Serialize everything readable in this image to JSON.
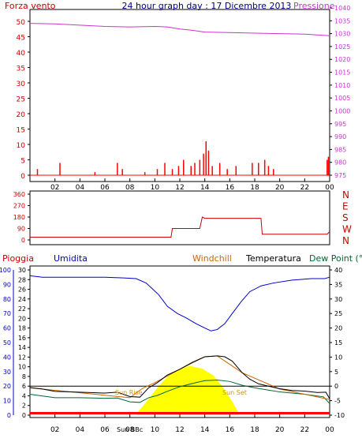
{
  "header": {
    "left_label": "Forza vento",
    "center_label": "24 hour graph day : 17 Dicembre 2013",
    "right_label": "Pressione"
  },
  "panel3_labels": {
    "rain": "Pioggia",
    "humidity": "Umidita",
    "windchill": "Windchill",
    "temperature": "Temperatura",
    "dewpoint": "Dew Point (°C"
  },
  "annotations": {
    "sun_rise": "Sun Rise",
    "sun_set": "Sun Set",
    "sun_bb": "Sun BBc"
  },
  "colors": {
    "frame": "#000000",
    "wind_axis": "#cc0000",
    "pressure": "#cc33cc",
    "direction": "#cc0000",
    "humidity": "#0000cc",
    "temperature": "#000000",
    "dewpoint": "#006633",
    "windchill": "#cc6600",
    "solar": "#ffff00",
    "rain": "#ff0000"
  },
  "chart_data": [
    {
      "type": "line",
      "name": "wind-pressure",
      "title": "24 hour graph day : 17 Dicembre 2013",
      "x_ticks": [
        "02",
        "04",
        "06",
        "08",
        "10",
        "12",
        "14",
        "16",
        "18",
        "20",
        "22",
        "00"
      ],
      "y_left_ticks": [
        "0",
        "5",
        "10",
        "15",
        "20",
        "25",
        "30",
        "35",
        "40",
        "45",
        "50"
      ],
      "y_left_range": [
        0,
        50
      ],
      "y_right_ticks": [
        "975",
        "980",
        "985",
        "990",
        "995",
        "1000",
        "1005",
        "1010",
        "1015",
        "1020",
        "1025",
        "1030",
        "1035",
        "1040"
      ],
      "y_right_range": [
        975,
        1040
      ],
      "series": [
        {
          "name": "Pressione",
          "x": [
            0,
            2,
            4,
            6,
            8,
            10,
            11,
            12,
            13,
            14,
            16,
            18,
            20,
            22,
            24
          ],
          "y": [
            1034,
            1033.8,
            1033.3,
            1032.8,
            1032.6,
            1032.8,
            1032.6,
            1031.8,
            1031.3,
            1030.6,
            1030.4,
            1030.2,
            1030,
            1029.8,
            1029.2
          ]
        },
        {
          "name": "Forza vento",
          "x": [
            0.6,
            2.4,
            5.2,
            7.0,
            7.4,
            9.2,
            10.2,
            10.8,
            11.4,
            11.9,
            12.3,
            12.9,
            13.2,
            13.6,
            13.9,
            14.1,
            14.3,
            14.6,
            15.2,
            15.8,
            16.5,
            17.8,
            18.3,
            18.8,
            19.1,
            19.5,
            23.8,
            23.9
          ],
          "y": [
            2,
            4,
            1,
            4,
            2,
            1,
            2,
            4,
            2,
            3,
            5,
            3,
            4,
            5,
            7,
            11,
            8,
            3,
            4,
            2,
            3,
            4,
            4,
            5,
            3,
            2,
            5,
            6
          ]
        }
      ]
    },
    {
      "type": "line",
      "name": "wind-direction",
      "y_left_ticks": [
        "0",
        "90",
        "180",
        "270",
        "360"
      ],
      "y_range": [
        0,
        360
      ],
      "y_right_ticks": [
        "N",
        "W",
        "S",
        "E",
        "N"
      ],
      "series": [
        {
          "name": "direction",
          "x": [
            0,
            5,
            10,
            11.3,
            11.4,
            13.6,
            13.7,
            13.8,
            14.0,
            14.2,
            18.5,
            18.6,
            23.8,
            24
          ],
          "y": [
            22,
            22,
            22,
            22,
            90,
            90,
            135,
            180,
            170,
            170,
            170,
            45,
            45,
            65
          ]
        }
      ]
    },
    {
      "type": "line",
      "name": "rain-humidity-temperature",
      "y_far_left_ticks": [
        "0",
        "10",
        "20",
        "30",
        "40",
        "50",
        "60",
        "70",
        "80",
        "90",
        "100"
      ],
      "y_far_left_range": [
        0,
        100
      ],
      "y_left_ticks": [
        "0",
        "2",
        "4",
        "6",
        "8",
        "10",
        "12",
        "14",
        "16",
        "18",
        "20",
        "22",
        "24",
        "26",
        "28",
        "30"
      ],
      "y_left_range": [
        0,
        30
      ],
      "y_right_ticks": [
        "-10",
        "-5",
        "0",
        "5",
        "10",
        "15",
        "20",
        "25",
        "30",
        "35",
        "40"
      ],
      "y_right_range": [
        -10,
        40
      ],
      "x_ticks": [
        "02",
        "04",
        "06",
        "08",
        "10",
        "12",
        "14",
        "16",
        "18",
        "20",
        "22",
        "00"
      ],
      "zero_line": 0,
      "series": [
        {
          "name": "Umidita",
          "axis": "far_left",
          "x": [
            0,
            1,
            2,
            4,
            6,
            7.5,
            8.5,
            9.3,
            9.8,
            10.3,
            11,
            11.8,
            12.5,
            13.3,
            14,
            14.5,
            15,
            15.6,
            16.2,
            16.9,
            17.6,
            18.5,
            19.5,
            21,
            22.5,
            23.6,
            24
          ],
          "y": [
            96,
            95,
            95,
            95,
            95,
            94.5,
            94,
            91,
            87,
            83,
            75,
            70,
            67,
            63,
            60,
            58,
            59,
            63,
            70,
            78,
            85,
            89,
            91,
            93,
            94,
            94,
            95
          ]
        },
        {
          "name": "Temperatura",
          "axis": "right",
          "x": [
            0,
            1,
            2,
            4,
            6,
            7,
            8,
            8.8,
            9.5,
            10.2,
            11,
            12,
            13,
            14,
            15,
            15.6,
            16.2,
            17,
            17.6,
            18.3,
            19,
            20,
            21,
            22,
            23,
            23.7,
            24
          ],
          "y": [
            -0.5,
            -1,
            -1.8,
            -2.1,
            -2.4,
            -2.1,
            -3.6,
            -3.8,
            -0.6,
            1.2,
            3.8,
            5.8,
            8.2,
            10.1,
            10.4,
            10.1,
            8.6,
            4.6,
            2.4,
            0.8,
            0.1,
            -0.9,
            -1.5,
            -1.7,
            -2.2,
            -2.1,
            -4.4
          ]
        },
        {
          "name": "Dew Point",
          "axis": "right",
          "x": [
            0,
            2,
            4,
            6,
            7,
            8,
            8.8,
            9.5,
            10.2,
            11,
            12,
            13,
            14,
            15,
            16,
            17,
            18,
            19,
            20,
            22,
            23.5,
            24
          ],
          "y": [
            -2.8,
            -4,
            -4,
            -4.2,
            -4.1,
            -5.4,
            -5.6,
            -4,
            -3.2,
            -1.8,
            -0.2,
            0.9,
            1.9,
            2.1,
            1.6,
            0.3,
            -0.6,
            -1.3,
            -2,
            -2.8,
            -3.7,
            -6
          ]
        },
        {
          "name": "Windchill",
          "axis": "right",
          "x": [
            0,
            8,
            9,
            10,
            12,
            14,
            15,
            17,
            20,
            24
          ],
          "y": [
            -0.6,
            -4,
            -0.8,
            1.2,
            5.8,
            10.1,
            10.4,
            4.6,
            -1,
            -4.6
          ]
        },
        {
          "name": "Solar",
          "axis": "left",
          "x": [
            8.6,
            9.4,
            10.3,
            11.1,
            12,
            12.8,
            13.8,
            14.7,
            15.5,
            16.2,
            16.7
          ],
          "y": [
            0.5,
            3,
            6,
            8.2,
            9.5,
            10.2,
            9.6,
            8.2,
            5.6,
            2.8,
            0.5
          ]
        },
        {
          "name": "Pioggia",
          "axis": "left",
          "x": [
            0,
            24
          ],
          "y": [
            0.4,
            0.4
          ]
        }
      ]
    }
  ]
}
